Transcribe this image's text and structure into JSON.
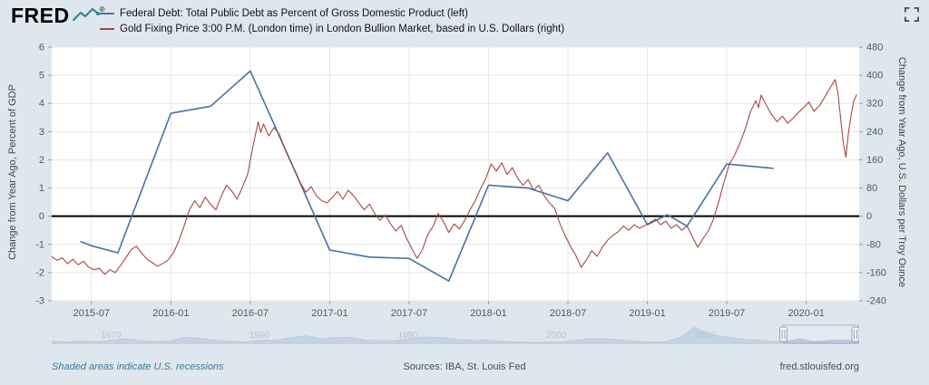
{
  "header": {
    "logo": {
      "text": "FRED",
      "reg": "®",
      "mark_color": "#2f8799"
    },
    "fullscreen_tooltip": "Fullscreen"
  },
  "icons": {
    "fred_mark": "line-chart-zigzag-icon",
    "fullscreen": "expand-corners-icon"
  },
  "footer": {
    "note": "Shaded areas indicate U.S. recessions",
    "sources": "Sources: IBA, St. Louis Fed",
    "site": "fred.stlouisfed.org"
  },
  "chart_data": {
    "type": "line",
    "title": "",
    "x_axis": {
      "unit": "months since 2015-04",
      "range": [
        0,
        61
      ],
      "ticks": [
        {
          "m": 3,
          "label": "2015-07"
        },
        {
          "m": 9,
          "label": "2016-01"
        },
        {
          "m": 15,
          "label": "2016-07"
        },
        {
          "m": 21,
          "label": "2017-01"
        },
        {
          "m": 27,
          "label": "2017-07"
        },
        {
          "m": 33,
          "label": "2018-01"
        },
        {
          "m": 39,
          "label": "2018-07"
        },
        {
          "m": 45,
          "label": "2019-01"
        },
        {
          "m": 51,
          "label": "2019-07"
        },
        {
          "m": 57,
          "label": "2020-01"
        }
      ]
    },
    "left_axis": {
      "label": "Change from Year Ago, Percent of GDP",
      "min": -3,
      "max": 6,
      "ticks": [
        6,
        5,
        4,
        3,
        2,
        1,
        0,
        -1,
        -2,
        -3
      ]
    },
    "right_axis": {
      "label": "Change from Year Ago, U.S. Dollars per Troy Ounce",
      "min": -240,
      "max": 480,
      "ticks": [
        480,
        400,
        320,
        240,
        160,
        80,
        0,
        -80,
        -160,
        -240
      ]
    },
    "zero_line_color": "#000000",
    "grid": true,
    "series": [
      {
        "name": "Federal Debt: Total Public Debt as Percent of Gross Domestic Product (left)",
        "color": "#4572a7",
        "axis": "left",
        "width": 1.6,
        "points": [
          [
            2.2,
            -0.9
          ],
          [
            3,
            -1.05
          ],
          [
            5,
            -1.3
          ],
          [
            9,
            3.65
          ],
          [
            12,
            3.9
          ],
          [
            15,
            5.15
          ],
          [
            18,
            2.0
          ],
          [
            21,
            -1.2
          ],
          [
            24,
            -1.45
          ],
          [
            27,
            -1.5
          ],
          [
            30,
            -2.3
          ],
          [
            33,
            1.1
          ],
          [
            36,
            1.0
          ],
          [
            39,
            0.55
          ],
          [
            42,
            2.25
          ],
          [
            45,
            -0.3
          ],
          [
            46.5,
            0.05
          ],
          [
            48,
            -0.35
          ],
          [
            51,
            1.85
          ],
          [
            54.5,
            1.7
          ]
        ]
      },
      {
        "name": "Gold Fixing Price 3:00 P.M. (London time) in London Bullion Market, based in U.S. Dollars (right)",
        "color": "#aa4643",
        "axis": "right",
        "width": 1.1,
        "points": [
          [
            0,
            -115
          ],
          [
            0.4,
            -125
          ],
          [
            0.8,
            -118
          ],
          [
            1.2,
            -135
          ],
          [
            1.6,
            -122
          ],
          [
            2,
            -138
          ],
          [
            2.4,
            -128
          ],
          [
            2.8,
            -145
          ],
          [
            3.2,
            -152
          ],
          [
            3.6,
            -148
          ],
          [
            4,
            -165
          ],
          [
            4.4,
            -152
          ],
          [
            4.8,
            -160
          ],
          [
            5.2,
            -140
          ],
          [
            5.6,
            -118
          ],
          [
            6,
            -95
          ],
          [
            6.4,
            -85
          ],
          [
            6.8,
            -105
          ],
          [
            7.2,
            -122
          ],
          [
            7.6,
            -132
          ],
          [
            8,
            -142
          ],
          [
            8.4,
            -134
          ],
          [
            8.8,
            -124
          ],
          [
            9.2,
            -104
          ],
          [
            9.6,
            -70
          ],
          [
            10,
            -28
          ],
          [
            10.4,
            18
          ],
          [
            10.8,
            44
          ],
          [
            11.2,
            24
          ],
          [
            11.6,
            54
          ],
          [
            12,
            34
          ],
          [
            12.4,
            18
          ],
          [
            12.8,
            56
          ],
          [
            13.2,
            88
          ],
          [
            13.6,
            72
          ],
          [
            14,
            48
          ],
          [
            14.4,
            82
          ],
          [
            14.8,
            118
          ],
          [
            15.2,
            198
          ],
          [
            15.6,
            268
          ],
          [
            15.8,
            238
          ],
          [
            16,
            262
          ],
          [
            16.4,
            228
          ],
          [
            16.8,
            252
          ],
          [
            17.2,
            232
          ],
          [
            17.6,
            192
          ],
          [
            18,
            158
          ],
          [
            18.4,
            128
          ],
          [
            18.8,
            94
          ],
          [
            19.2,
            68
          ],
          [
            19.6,
            84
          ],
          [
            20,
            58
          ],
          [
            20.4,
            44
          ],
          [
            20.8,
            38
          ],
          [
            21.2,
            54
          ],
          [
            21.6,
            70
          ],
          [
            22,
            48
          ],
          [
            22.4,
            74
          ],
          [
            22.8,
            58
          ],
          [
            23.2,
            38
          ],
          [
            23.6,
            18
          ],
          [
            24,
            34
          ],
          [
            24.4,
            8
          ],
          [
            24.8,
            -12
          ],
          [
            25.2,
            4
          ],
          [
            25.6,
            -22
          ],
          [
            26,
            -42
          ],
          [
            26.4,
            -26
          ],
          [
            26.8,
            -62
          ],
          [
            27.2,
            -92
          ],
          [
            27.6,
            -120
          ],
          [
            28,
            -96
          ],
          [
            28.4,
            -52
          ],
          [
            28.8,
            -30
          ],
          [
            29.2,
            8
          ],
          [
            29.6,
            -16
          ],
          [
            30,
            -46
          ],
          [
            30.4,
            -22
          ],
          [
            30.8,
            -36
          ],
          [
            31.2,
            -12
          ],
          [
            31.6,
            18
          ],
          [
            32,
            44
          ],
          [
            32.4,
            78
          ],
          [
            32.8,
            108
          ],
          [
            33.2,
            148
          ],
          [
            33.6,
            128
          ],
          [
            34,
            152
          ],
          [
            34.4,
            118
          ],
          [
            34.8,
            138
          ],
          [
            35.2,
            108
          ],
          [
            35.6,
            88
          ],
          [
            36,
            104
          ],
          [
            36.4,
            74
          ],
          [
            36.8,
            88
          ],
          [
            37.2,
            58
          ],
          [
            37.6,
            38
          ],
          [
            38,
            22
          ],
          [
            38.4,
            -22
          ],
          [
            38.8,
            -56
          ],
          [
            39.2,
            -86
          ],
          [
            39.6,
            -112
          ],
          [
            40,
            -145
          ],
          [
            40.4,
            -124
          ],
          [
            40.8,
            -98
          ],
          [
            41.2,
            -114
          ],
          [
            41.6,
            -88
          ],
          [
            42,
            -68
          ],
          [
            42.4,
            -54
          ],
          [
            42.8,
            -44
          ],
          [
            43.2,
            -28
          ],
          [
            43.6,
            -40
          ],
          [
            44,
            -24
          ],
          [
            44.4,
            -34
          ],
          [
            44.8,
            -27
          ],
          [
            45.2,
            -18
          ],
          [
            45.6,
            -8
          ],
          [
            46,
            -24
          ],
          [
            46.4,
            -14
          ],
          [
            46.8,
            -34
          ],
          [
            47.2,
            -24
          ],
          [
            47.6,
            -40
          ],
          [
            48,
            -28
          ],
          [
            48.4,
            -58
          ],
          [
            48.8,
            -88
          ],
          [
            49.2,
            -64
          ],
          [
            49.6,
            -42
          ],
          [
            50,
            -8
          ],
          [
            50.4,
            42
          ],
          [
            50.8,
            98
          ],
          [
            51.2,
            148
          ],
          [
            51.6,
            174
          ],
          [
            52,
            208
          ],
          [
            52.4,
            248
          ],
          [
            52.8,
            298
          ],
          [
            53.2,
            328
          ],
          [
            53.4,
            308
          ],
          [
            53.6,
            344
          ],
          [
            54,
            314
          ],
          [
            54.4,
            288
          ],
          [
            54.8,
            268
          ],
          [
            55.2,
            284
          ],
          [
            55.6,
            264
          ],
          [
            56,
            278
          ],
          [
            56.4,
            294
          ],
          [
            56.8,
            308
          ],
          [
            57.2,
            324
          ],
          [
            57.6,
            298
          ],
          [
            58,
            314
          ],
          [
            58.4,
            338
          ],
          [
            58.8,
            364
          ],
          [
            59.2,
            388
          ],
          [
            59.4,
            348
          ],
          [
            59.6,
            278
          ],
          [
            59.8,
            208
          ],
          [
            60,
            168
          ],
          [
            60.2,
            238
          ],
          [
            60.4,
            288
          ],
          [
            60.6,
            328
          ],
          [
            60.8,
            344
          ]
        ]
      }
    ],
    "navigator": {
      "year_range": [
        1966,
        2020.4
      ],
      "selection": [
        2015.3,
        2020.4
      ],
      "decade_labels": [
        {
          "year": 1970,
          "label": "1970"
        },
        {
          "year": 1980,
          "label": "1980"
        },
        {
          "year": 1990,
          "label": "1990"
        },
        {
          "year": 2000,
          "label": "2000"
        },
        {
          "year": 2010,
          "label": "2010"
        }
      ],
      "max": 10,
      "values": [
        1.2,
        0.8,
        1.5,
        1.0,
        1.8,
        2.6,
        1.6,
        1.0,
        1.6,
        3.4,
        2.6,
        1.8,
        1.2,
        0.8,
        1.8,
        1.6,
        3.2,
        4.2,
        2.4,
        3.2,
        3.4,
        1.8,
        1.6,
        1.6,
        2.6,
        3.6,
        3.2,
        2.4,
        1.6,
        1.8,
        1.2,
        0.8,
        0.6,
        0.6,
        0.8,
        1.6,
        2.6,
        2.6,
        1.8,
        1.2,
        0.8,
        0.8,
        3.2,
        8.8,
        5.2,
        3.6,
        2.6,
        1.8,
        1.2,
        0.8,
        2.4,
        1.0,
        1.6,
        1.8,
        1.6
      ]
    }
  }
}
